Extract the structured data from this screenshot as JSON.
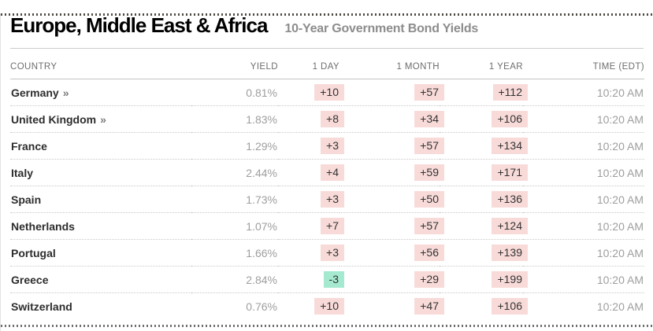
{
  "page": {
    "title": "Europe, Middle East & Africa",
    "subtitle": "10-Year Government Bond Yields"
  },
  "table": {
    "headers": {
      "country": "COUNTRY",
      "yield": "YIELD",
      "day": "1 DAY",
      "month": "1 MONTH",
      "year": "1 YEAR",
      "time": "TIME (EDT)"
    },
    "link_arrow": "»",
    "rows": [
      {
        "country": "Germany",
        "has_link": true,
        "yield": "0.81%",
        "day": "+10",
        "month": "+57",
        "year": "+112",
        "time": "10:20 AM"
      },
      {
        "country": "United Kingdom",
        "has_link": true,
        "yield": "1.83%",
        "day": "+8",
        "month": "+34",
        "year": "+106",
        "time": "10:20 AM"
      },
      {
        "country": "France",
        "has_link": false,
        "yield": "1.29%",
        "day": "+3",
        "month": "+57",
        "year": "+134",
        "time": "10:20 AM"
      },
      {
        "country": "Italy",
        "has_link": false,
        "yield": "2.44%",
        "day": "+4",
        "month": "+59",
        "year": "+171",
        "time": "10:20 AM"
      },
      {
        "country": "Spain",
        "has_link": false,
        "yield": "1.73%",
        "day": "+3",
        "month": "+50",
        "year": "+136",
        "time": "10:20 AM"
      },
      {
        "country": "Netherlands",
        "has_link": false,
        "yield": "1.07%",
        "day": "+7",
        "month": "+57",
        "year": "+124",
        "time": "10:20 AM"
      },
      {
        "country": "Portugal",
        "has_link": false,
        "yield": "1.66%",
        "day": "+3",
        "month": "+56",
        "year": "+139",
        "time": "10:20 AM"
      },
      {
        "country": "Greece",
        "has_link": false,
        "yield": "2.84%",
        "day": "-3",
        "month": "+29",
        "year": "+199",
        "time": "10:20 AM"
      },
      {
        "country": "Switzerland",
        "has_link": false,
        "yield": "0.76%",
        "day": "+10",
        "month": "+47",
        "year": "+106",
        "time": "10:20 AM"
      }
    ]
  },
  "colors": {
    "positive_bg": "#f8dbd9",
    "negative_bg": "#a4e9d0",
    "badge_text": "#333333"
  }
}
